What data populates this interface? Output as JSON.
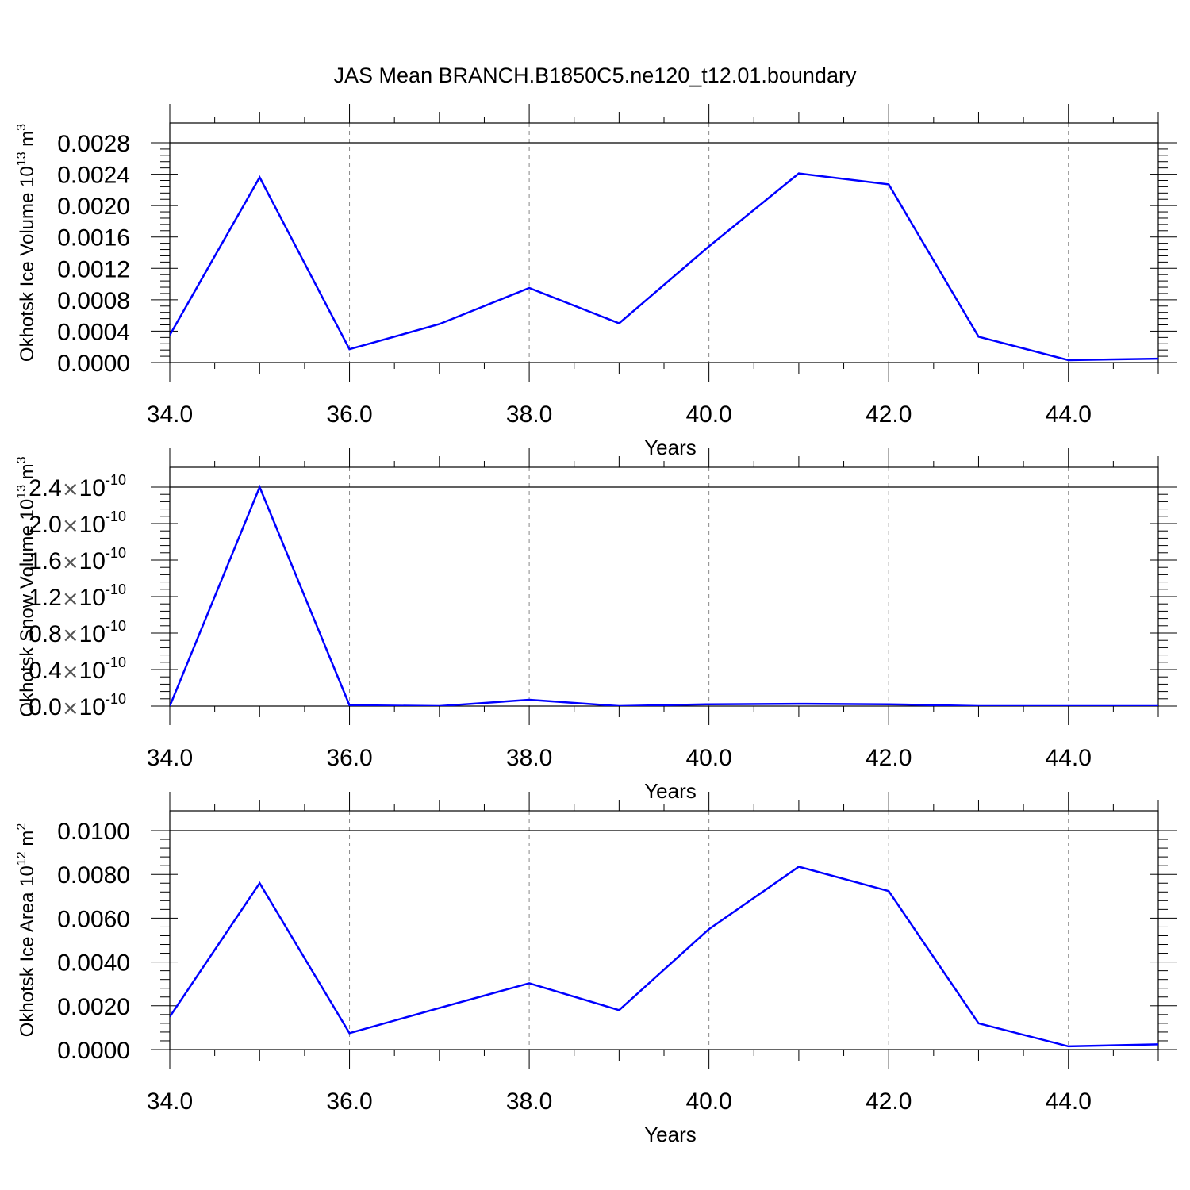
{
  "title": "JAS Mean BRANCH.B1850C5.ne120_t12.01.boundary",
  "series_color": "#0000ff",
  "chart_data": [
    {
      "type": "line",
      "xlabel": "Years",
      "ylabel": {
        "text": "Okhotsk Ice Volume 10",
        "sup": "13",
        "unit": " m",
        "unit_sup": "3"
      },
      "xlim": [
        34,
        45
      ],
      "ylim": [
        0,
        0.0028
      ],
      "xticks": [
        "34.0",
        "36.0",
        "38.0",
        "40.0",
        "42.0",
        "44.0"
      ],
      "yticks": [
        "0.0000",
        "0.0004",
        "0.0008",
        "0.0012",
        "0.0016",
        "0.0020",
        "0.0024",
        "0.0028"
      ],
      "x": [
        34,
        35,
        36,
        37,
        38,
        39,
        40,
        41,
        42,
        43,
        44,
        45
      ],
      "y": [
        0.00035,
        0.00236,
        0.00017,
        0.00049,
        0.00095,
        0.0005,
        0.00148,
        0.00241,
        0.00227,
        0.00033,
        3e-05,
        5e-05
      ],
      "grid": "x-dashed"
    },
    {
      "type": "line",
      "xlabel": "Years",
      "ylabel": {
        "text": "Okhotsk Snow Volume 10",
        "sup": "13",
        "unit": " m",
        "unit_sup": "3"
      },
      "xlim": [
        34,
        45
      ],
      "ylim": [
        0,
        2.4e-10
      ],
      "xticks": [
        "34.0",
        "36.0",
        "38.0",
        "40.0",
        "42.0",
        "44.0"
      ],
      "yticks": [
        {
          "mant": "0.0",
          "times": "×",
          "base": "10",
          "exp": "-10"
        },
        {
          "mant": "0.4",
          "times": "×",
          "base": "10",
          "exp": "-10"
        },
        {
          "mant": "0.8",
          "times": "×",
          "base": "10",
          "exp": "-10"
        },
        {
          "mant": "1.2",
          "times": "×",
          "base": "10",
          "exp": "-10"
        },
        {
          "mant": "1.6",
          "times": "×",
          "base": "10",
          "exp": "-10"
        },
        {
          "mant": "2.0",
          "times": "×",
          "base": "10",
          "exp": "-10"
        },
        {
          "mant": "2.4",
          "times": "×",
          "base": "10",
          "exp": "-10"
        }
      ],
      "x": [
        34,
        35,
        36,
        37,
        38,
        39,
        40,
        41,
        42,
        43,
        44,
        45
      ],
      "y": [
        0,
        2.4e-10,
        1e-12,
        0,
        7e-12,
        0,
        2e-12,
        2.5e-12,
        2e-12,
        0,
        0,
        0
      ],
      "grid": "x-dashed"
    },
    {
      "type": "line",
      "xlabel": "Years",
      "ylabel": {
        "text": "Okhotsk Ice Area 10",
        "sup": "12",
        "unit": " m",
        "unit_sup": "2"
      },
      "xlim": [
        34,
        45
      ],
      "ylim": [
        0,
        0.01
      ],
      "xticks": [
        "34.0",
        "36.0",
        "38.0",
        "40.0",
        "42.0",
        "44.0"
      ],
      "yticks": [
        "0.0000",
        "0.0020",
        "0.0040",
        "0.0060",
        "0.0080",
        "0.0100"
      ],
      "x": [
        34,
        35,
        36,
        37,
        38,
        39,
        40,
        41,
        42,
        43,
        44,
        45
      ],
      "y": [
        0.0015,
        0.0076,
        0.00075,
        0.0019,
        0.00303,
        0.0018,
        0.0055,
        0.00835,
        0.00724,
        0.0012,
        0.00015,
        0.00024
      ],
      "grid": "x-dashed"
    }
  ]
}
